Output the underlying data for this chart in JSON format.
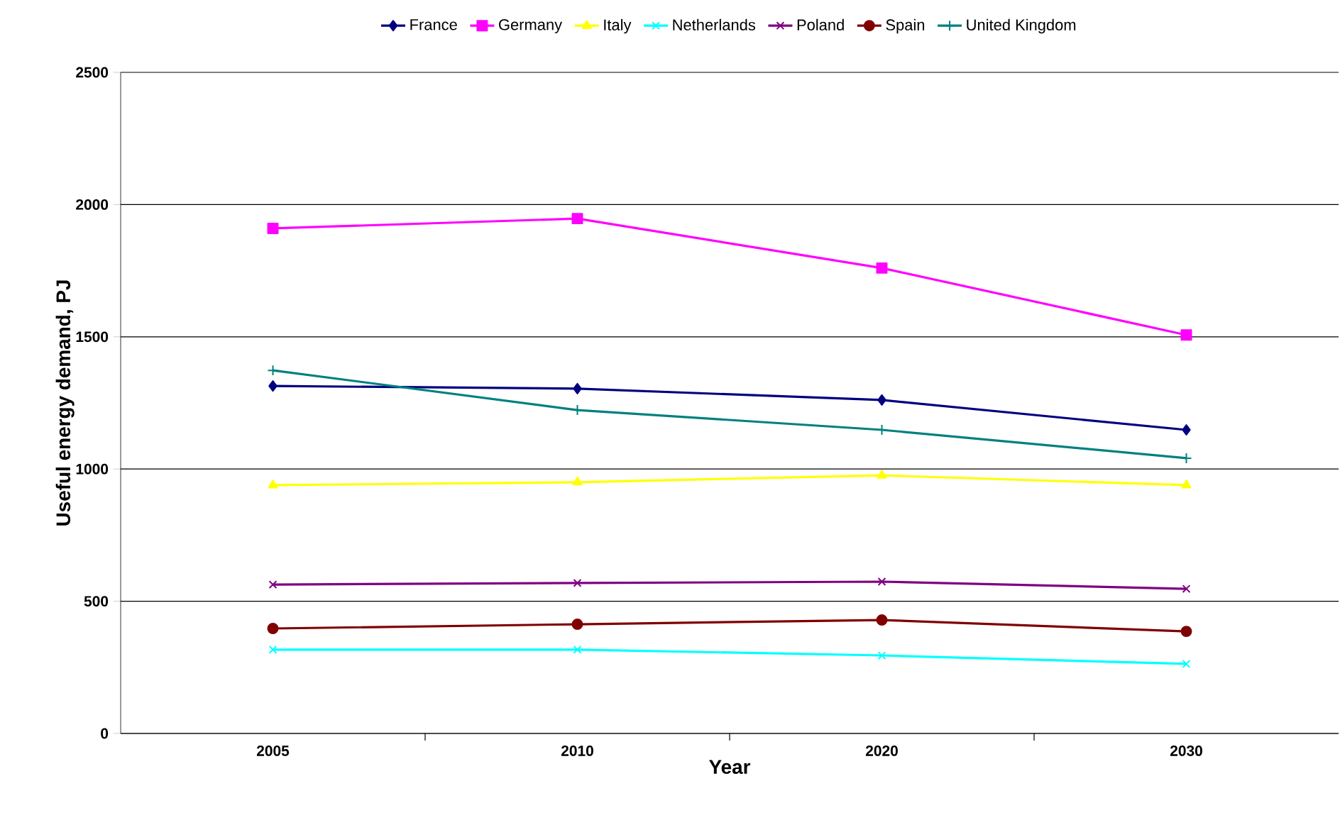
{
  "chart_data": {
    "type": "line",
    "xlabel": "Year",
    "ylabel": "Useful energy demand, PJ",
    "categories": [
      "2005",
      "2010",
      "2020",
      "2030"
    ],
    "series": [
      {
        "name": "France",
        "color": "#000080",
        "marker": "diamond",
        "values": [
          1314,
          1304,
          1261,
          1148
        ]
      },
      {
        "name": "Germany",
        "color": "#ff00ff",
        "marker": "square",
        "values": [
          1910,
          1947,
          1760,
          1507
        ]
      },
      {
        "name": "Italy",
        "color": "#ffff00",
        "marker": "triangle",
        "values": [
          939,
          950,
          976,
          939
        ]
      },
      {
        "name": "Netherlands",
        "color": "#00ffff",
        "marker": "cross",
        "values": [
          317,
          317,
          295,
          263
        ]
      },
      {
        "name": "Poland",
        "color": "#800080",
        "marker": "cross",
        "values": [
          563,
          569,
          574,
          547
        ]
      },
      {
        "name": "Spain",
        "color": "#800000",
        "marker": "circle",
        "values": [
          397,
          413,
          429,
          386
        ]
      },
      {
        "name": "United Kingdom",
        "color": "#008080",
        "marker": "plus",
        "values": [
          1373,
          1223,
          1148,
          1041
        ]
      }
    ],
    "ylim": [
      0,
      2500
    ],
    "yticks": [
      0,
      500,
      1000,
      1500,
      2000,
      2500
    ],
    "grid": "y",
    "legend": "top",
    "line_style": "solid"
  }
}
